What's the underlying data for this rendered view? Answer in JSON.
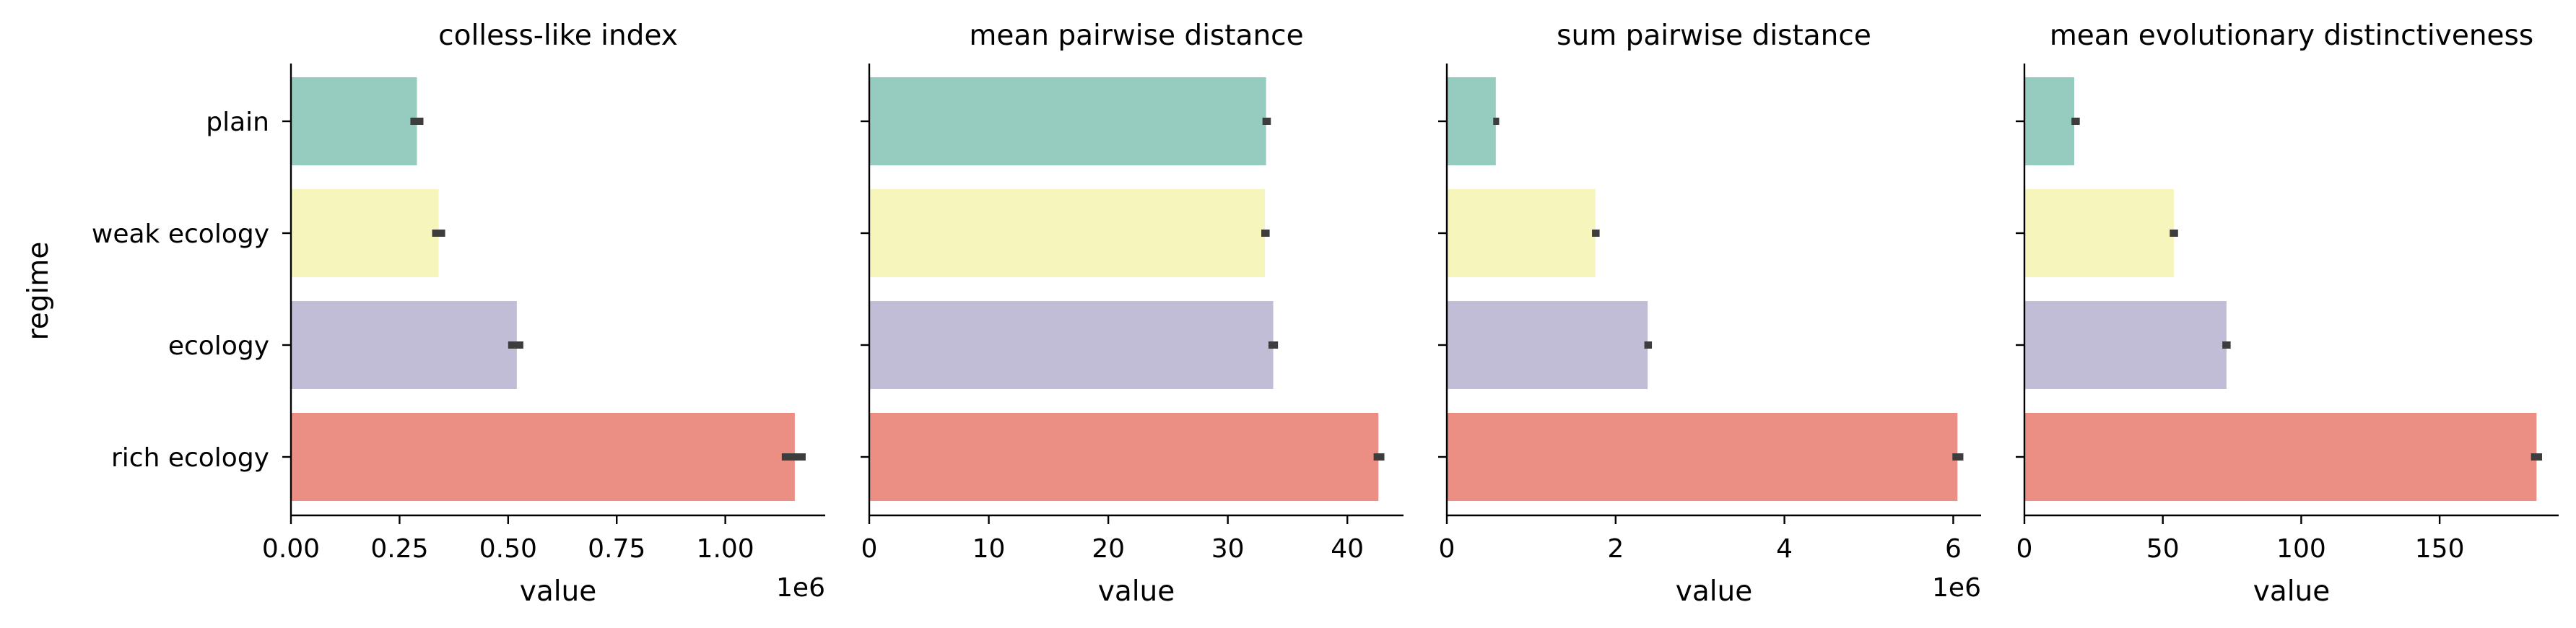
{
  "chart_data": {
    "type": "bar",
    "orientation": "horizontal",
    "ylabel": "regime",
    "categories": [
      "plain",
      "weak ecology",
      "ecology",
      "rich ecology"
    ],
    "colors": [
      "#96cbc0",
      "#f6f6bc",
      "#c1bdd6",
      "#eb8f84"
    ],
    "legend": "none",
    "grid": false,
    "panels": [
      {
        "title": "colless-like index",
        "xlabel": "value",
        "offset_label": "1e6",
        "xlim": [
          0,
          1.23
        ],
        "xticks": [
          0,
          0.25,
          0.5,
          0.75,
          1.0
        ],
        "xtick_labels": [
          "0.00",
          "0.25",
          "0.50",
          "0.75",
          "1.00"
        ],
        "values": [
          0.29,
          0.34,
          0.52,
          1.16
        ],
        "ci": [
          [
            0.275,
            0.305
          ],
          [
            0.325,
            0.355
          ],
          [
            0.5,
            0.535
          ],
          [
            1.13,
            1.185
          ]
        ]
      },
      {
        "title": "mean pairwise distance",
        "xlabel": "value",
        "offset_label": "",
        "xlim": [
          0,
          44.7
        ],
        "xticks": [
          0,
          10,
          20,
          30,
          40
        ],
        "xtick_labels": [
          "0",
          "10",
          "20",
          "30",
          "40"
        ],
        "values": [
          33.2,
          33.1,
          33.8,
          42.6
        ],
        "ci": [
          [
            32.9,
            33.6
          ],
          [
            32.8,
            33.5
          ],
          [
            33.4,
            34.2
          ],
          [
            42.2,
            43.1
          ]
        ]
      },
      {
        "title": "sum pairwise distance",
        "xlabel": "value",
        "offset_label": "1e6",
        "xlim": [
          0,
          6.33
        ],
        "xticks": [
          0,
          2,
          4,
          6
        ],
        "xtick_labels": [
          "0",
          "2",
          "4",
          "6"
        ],
        "values": [
          0.58,
          1.76,
          2.38,
          6.05
        ],
        "ci": [
          [
            0.55,
            0.62
          ],
          [
            1.72,
            1.81
          ],
          [
            2.34,
            2.43
          ],
          [
            5.99,
            6.12
          ]
        ]
      },
      {
        "title": "mean evolutionary distinctiveness",
        "xlabel": "value",
        "offset_label": "",
        "xlim": [
          0,
          193
        ],
        "xticks": [
          0,
          50,
          100,
          150
        ],
        "xtick_labels": [
          "0",
          "50",
          "100",
          "150"
        ],
        "values": [
          18,
          54,
          73,
          185
        ],
        "ci": [
          [
            17,
            20
          ],
          [
            52.5,
            55.5
          ],
          [
            71.5,
            74.5
          ],
          [
            183,
            187
          ]
        ]
      }
    ]
  }
}
